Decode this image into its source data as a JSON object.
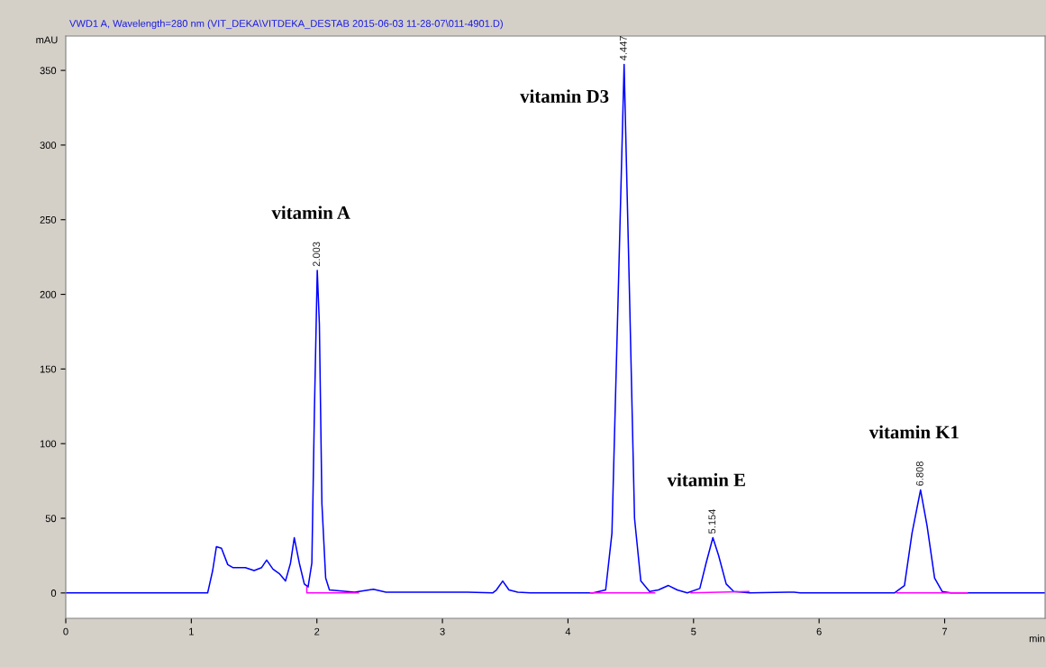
{
  "chart_data": {
    "type": "line",
    "title": "VWD1 A, Wavelength=280 nm (VIT_DEKA\\VITDEKA_DESTAB 2015-06-03 11-28-07\\011-4901.D)",
    "xlabel": "min",
    "ylabel": "mAU",
    "xlim": [
      0,
      7.8
    ],
    "xticks": [
      0,
      1,
      2,
      3,
      4,
      5,
      6,
      7
    ],
    "ylim": [
      -17,
      373
    ],
    "yticks": [
      0,
      50,
      100,
      150,
      200,
      250,
      300,
      350
    ],
    "grid": false,
    "legend": false,
    "marker": "none",
    "line_style": "solid",
    "series": [
      {
        "color": "#0000ff",
        "x": [
          0,
          1.13,
          1.17,
          1.2,
          1.24,
          1.29,
          1.33,
          1.43,
          1.5,
          1.56,
          1.6,
          1.65,
          1.7,
          1.75,
          1.79,
          1.82,
          1.86,
          1.9,
          1.93,
          1.96,
          1.98,
          2.003,
          2.02,
          2.04,
          2.07,
          2.1,
          2.3,
          2.45,
          2.55,
          3.2,
          3.4,
          3.43,
          3.48,
          3.53,
          3.6,
          3.7,
          4.2,
          4.3,
          4.35,
          4.4,
          4.447,
          4.49,
          4.53,
          4.58,
          4.65,
          4.72,
          4.8,
          4.87,
          4.95,
          5.05,
          5.1,
          5.154,
          5.2,
          5.26,
          5.32,
          5.45,
          5.75,
          5.8,
          5.85,
          6.6,
          6.68,
          6.74,
          6.808,
          6.86,
          6.92,
          6.98,
          7.05,
          7.8
        ],
        "values": [
          0,
          0,
          15,
          31,
          30,
          19,
          17,
          17,
          15,
          17,
          22,
          16,
          13,
          8,
          20,
          37,
          20,
          6,
          4,
          20,
          120,
          216,
          180,
          60,
          10,
          2,
          0.5,
          2.5,
          0.5,
          0.5,
          0,
          2,
          8,
          2,
          0.5,
          0,
          0,
          2,
          40,
          200,
          354,
          200,
          50,
          8,
          1,
          2,
          5,
          2,
          0,
          3,
          20,
          37,
          25,
          6,
          1,
          0,
          0.5,
          0.5,
          0,
          0,
          5,
          40,
          69,
          45,
          10,
          1,
          0,
          0
        ]
      },
      {
        "color": "#ff00ff",
        "x": [
          1.92,
          1.92,
          2.33,
          2.34,
          4.18,
          4.69,
          4.7,
          4.98,
          5.44,
          5.45,
          6.62,
          7.18
        ],
        "values": [
          4,
          0,
          0,
          null,
          0,
          0,
          null,
          0,
          1,
          null,
          0,
          0
        ]
      }
    ],
    "annotations": [
      {
        "text": "2.003",
        "x": 2.003,
        "y": 216
      },
      {
        "text": "4.447",
        "x": 4.447,
        "y": 354
      },
      {
        "text": "5.154",
        "x": 5.154,
        "y": 37
      },
      {
        "text": "6.808",
        "x": 6.808,
        "y": 69
      },
      {
        "text": "vitamin A",
        "x": 2.003,
        "y": 216
      },
      {
        "text": "vitamin D3",
        "x": 4.447,
        "y": 354
      },
      {
        "text": "vitamin E",
        "x": 5.154,
        "y": 37
      },
      {
        "text": "vitamin K1",
        "x": 6.808,
        "y": 69
      }
    ]
  }
}
